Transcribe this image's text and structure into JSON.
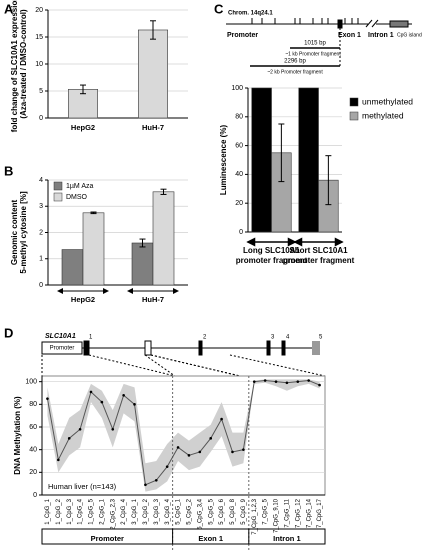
{
  "chart_data": [
    {
      "panel": "A",
      "type": "bar",
      "ylabel": [
        "fold change of SLC10A1 expression",
        "(Aza-treated / DMSO-control)"
      ],
      "categories": [
        "HepG2",
        "HuH-7"
      ],
      "values": [
        5.3,
        16.3
      ],
      "errors": [
        0.8,
        1.7
      ],
      "color": "#d9d9d9",
      "ylim": [
        0,
        20
      ],
      "yticks": [
        0,
        5,
        10,
        15,
        20
      ],
      "grid": true
    },
    {
      "panel": "B",
      "type": "grouped_bar",
      "ylabel": [
        "Genomic content",
        "5-methyl cytosine [%]"
      ],
      "categories": [
        "HepG2",
        "HuH-7"
      ],
      "series": [
        {
          "name": "1µM Aza",
          "color": "#7f7f7f",
          "values": [
            1.35,
            1.6
          ],
          "errors": [
            0,
            0.15
          ]
        },
        {
          "name": "DMSO",
          "color": "#d9d9d9",
          "values": [
            2.75,
            3.55
          ],
          "errors": [
            0.03,
            0.1
          ]
        }
      ],
      "ylim": [
        0,
        4
      ],
      "yticks": [
        0,
        1,
        2,
        3,
        4
      ],
      "grid": true,
      "legend": "top-left"
    },
    {
      "panel": "C",
      "type": "grouped_bar",
      "diagram": {
        "chromosome": "Chrom. 14q24.1",
        "promoter": "Promoter",
        "exon": "Exon 1",
        "intron": "Intron 1",
        "cpg": "CpG island",
        "short_bp": "1015 bp",
        "short_label": "~1 kb Promoter fragment",
        "long_bp": "2296 bp",
        "long_label": "~2 kb Promoter fragment"
      },
      "ylabel": [
        "Luminescence (%)"
      ],
      "categories": [
        "Long SLC10A1 promoter fragment",
        "Short SLC10A1 promoter fragment"
      ],
      "series": [
        {
          "name": "unmethylated",
          "color": "#000000",
          "values": [
            100,
            100
          ],
          "errors": [
            0,
            0
          ]
        },
        {
          "name": "methylated",
          "color": "#a6a6a6",
          "values": [
            55,
            36
          ],
          "errors": [
            20,
            17
          ]
        }
      ],
      "ylim": [
        0,
        100
      ],
      "yticks": [
        0,
        20,
        40,
        60,
        80,
        100
      ],
      "grid": true,
      "legend": "right"
    },
    {
      "panel": "D",
      "type": "line",
      "gene": {
        "name": "SLC10A1",
        "promoter": "Promoter",
        "exons": [
          "1",
          "2",
          "3",
          "4",
          "5"
        ]
      },
      "ylabel": [
        "DNA Methylation  (%)"
      ],
      "annotation": "Human liver (n=143)",
      "sections": [
        "Promoter",
        "Exon 1",
        "Intron 1"
      ],
      "categories": [
        "1_CpG_1",
        "1_CpG_2",
        "1_CpG_3",
        "1_CpG_4",
        "1_CpG_5",
        "2_CpG_1",
        "2_CpG_2,3",
        "2_CpG_4",
        "3_CpG_1",
        "3_CpG_2",
        "3_CpG_3",
        "3_CpG_4",
        "5_CpG_1",
        "5_CpG_2",
        "5_CpG_3,4",
        "5_CpG_5",
        "5_CpG_6",
        "5_CpG_8",
        "5_CpG_9",
        "7_CpG_1,2,3",
        "7_CpG_5",
        "7_CpG_9,10",
        "7_CpG_11",
        "7_CpG_12",
        "7_CpG_14",
        "7_CpG_17"
      ],
      "values": [
        85,
        31,
        50,
        58,
        91,
        82,
        58,
        88,
        80,
        9,
        13,
        25,
        42,
        35,
        38,
        50,
        67,
        38,
        40,
        100,
        101,
        100,
        99,
        100,
        101,
        97
      ],
      "band_lower": [
        70,
        20,
        35,
        42,
        82,
        68,
        42,
        72,
        65,
        3,
        5,
        12,
        30,
        22,
        25,
        38,
        52,
        25,
        28,
        98,
        99,
        96,
        92,
        96,
        98,
        94
      ],
      "band_upper": [
        95,
        45,
        68,
        75,
        98,
        92,
        75,
        98,
        95,
        28,
        30,
        45,
        55,
        48,
        55,
        62,
        82,
        55,
        55,
        101,
        102,
        102,
        102,
        102,
        102,
        100
      ],
      "color": "#555555",
      "band_color": "#d0d0d0",
      "ylim": [
        0,
        105
      ],
      "yticks": [
        0,
        20,
        40,
        60,
        80,
        100
      ],
      "grid": true
    }
  ]
}
